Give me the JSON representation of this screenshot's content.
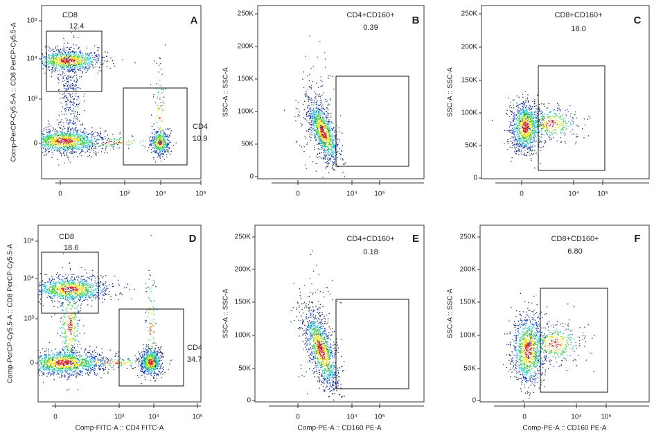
{
  "panels": [
    {
      "letter": "A",
      "ylabel": "Comp-PerCP-Cy5.5-A :: CD8 PerCP-Cy5.5-A",
      "xticks": [
        "0",
        "10³",
        "10⁴",
        "10⁵"
      ],
      "yticks": [
        "10⁵",
        "10⁴",
        "10³",
        "0"
      ],
      "gates": [
        {
          "name": "CD8",
          "value": "12.4"
        },
        {
          "name": "CD4",
          "value": "10.9"
        }
      ]
    },
    {
      "letter": "B",
      "ylabel": "SSC-A :: SSC-A",
      "xticks": [
        "0",
        "10⁴",
        "10⁵"
      ],
      "yticks": [
        "250K",
        "200K",
        "150K",
        "100K",
        "50K",
        "0"
      ],
      "gates": [
        {
          "name": "CD4+CD160+",
          "value": "0.39"
        }
      ]
    },
    {
      "letter": "C",
      "ylabel": "SSC-A :: SSC-A",
      "xticks": [
        "0",
        "10⁴",
        "10⁵"
      ],
      "yticks": [
        "250K",
        "200K",
        "150K",
        "100K",
        "50K",
        "0"
      ],
      "gates": [
        {
          "name": "CD8+CD160+",
          "value": "18.0"
        }
      ]
    },
    {
      "letter": "D",
      "ylabel": "Comp-PerCP-Cy5.5-A :: CD8 PerCP-Cy5.5-A",
      "xlabel": "Comp-FITC-A :: CD4 FITC-A",
      "xticks": [
        "0",
        "10³",
        "10⁴",
        "10⁵"
      ],
      "yticks": [
        "10⁵",
        "10⁴",
        "10³",
        "0"
      ],
      "gates": [
        {
          "name": "CD8",
          "value": "18.6"
        },
        {
          "name": "CD4",
          "value": "34.7"
        }
      ]
    },
    {
      "letter": "E",
      "ylabel": "SSC-A :: SSC-A",
      "xlabel": "Comp-PE-A :: CD160 PE-A",
      "xticks": [
        "0",
        "10⁴",
        "10⁵"
      ],
      "yticks": [
        "250K",
        "200K",
        "150K",
        "100K",
        "50K",
        "0"
      ],
      "gates": [
        {
          "name": "CD4+CD160+",
          "value": "0.18"
        }
      ]
    },
    {
      "letter": "F",
      "ylabel": "SSC-A :: SSC-A",
      "xlabel": "Comp-PE-A :: CD160 PE-A",
      "xticks": [
        "0",
        "10⁴",
        "10⁵"
      ],
      "yticks": [
        "250K",
        "200K",
        "150K",
        "100K",
        "50K",
        "0"
      ],
      "gates": [
        {
          "name": "CD8+CD160+",
          "value": "6.80"
        }
      ]
    }
  ]
}
